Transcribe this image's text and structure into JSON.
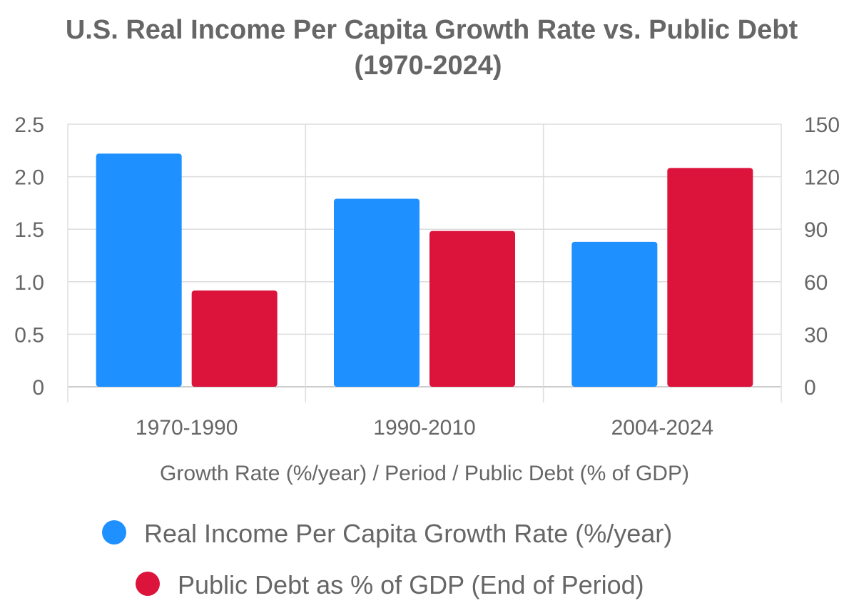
{
  "chart_data": {
    "type": "bar",
    "title": "U.S. Real Income Per Capita Growth Rate vs. Public Debt",
    "subtitle": "(1970-2024)",
    "categories": [
      "1970-1990",
      "1990-2010",
      "2004-2024"
    ],
    "xlabel": "Growth Rate (%/year) / Period / Public Debt (% of GDP)",
    "y_left": {
      "min": 0,
      "max": 2.5,
      "ticks": [
        0,
        0.5,
        1.0,
        1.5,
        2.0,
        2.5
      ],
      "tick_labels": [
        "0",
        "0.5",
        "1.0",
        "1.5",
        "2.0",
        "2.5"
      ]
    },
    "y_right": {
      "min": 0,
      "max": 150,
      "ticks": [
        0,
        30,
        60,
        90,
        120,
        150
      ],
      "tick_labels": [
        "0",
        "30",
        "60",
        "90",
        "120",
        "150"
      ]
    },
    "grid": true,
    "legend_position": "bottom",
    "series": [
      {
        "name": "Real Income Per Capita Growth Rate (%/year)",
        "axis": "left",
        "color": "#1E90FF",
        "values": [
          2.22,
          1.79,
          1.38
        ]
      },
      {
        "name": "Public Debt as % of GDP (End of Period)",
        "axis": "right",
        "color": "#DC143C",
        "values": [
          55,
          89,
          125
        ]
      }
    ]
  },
  "colors": {
    "text": "#666666",
    "grid": "#dddddd",
    "axis": "#cccccc"
  }
}
